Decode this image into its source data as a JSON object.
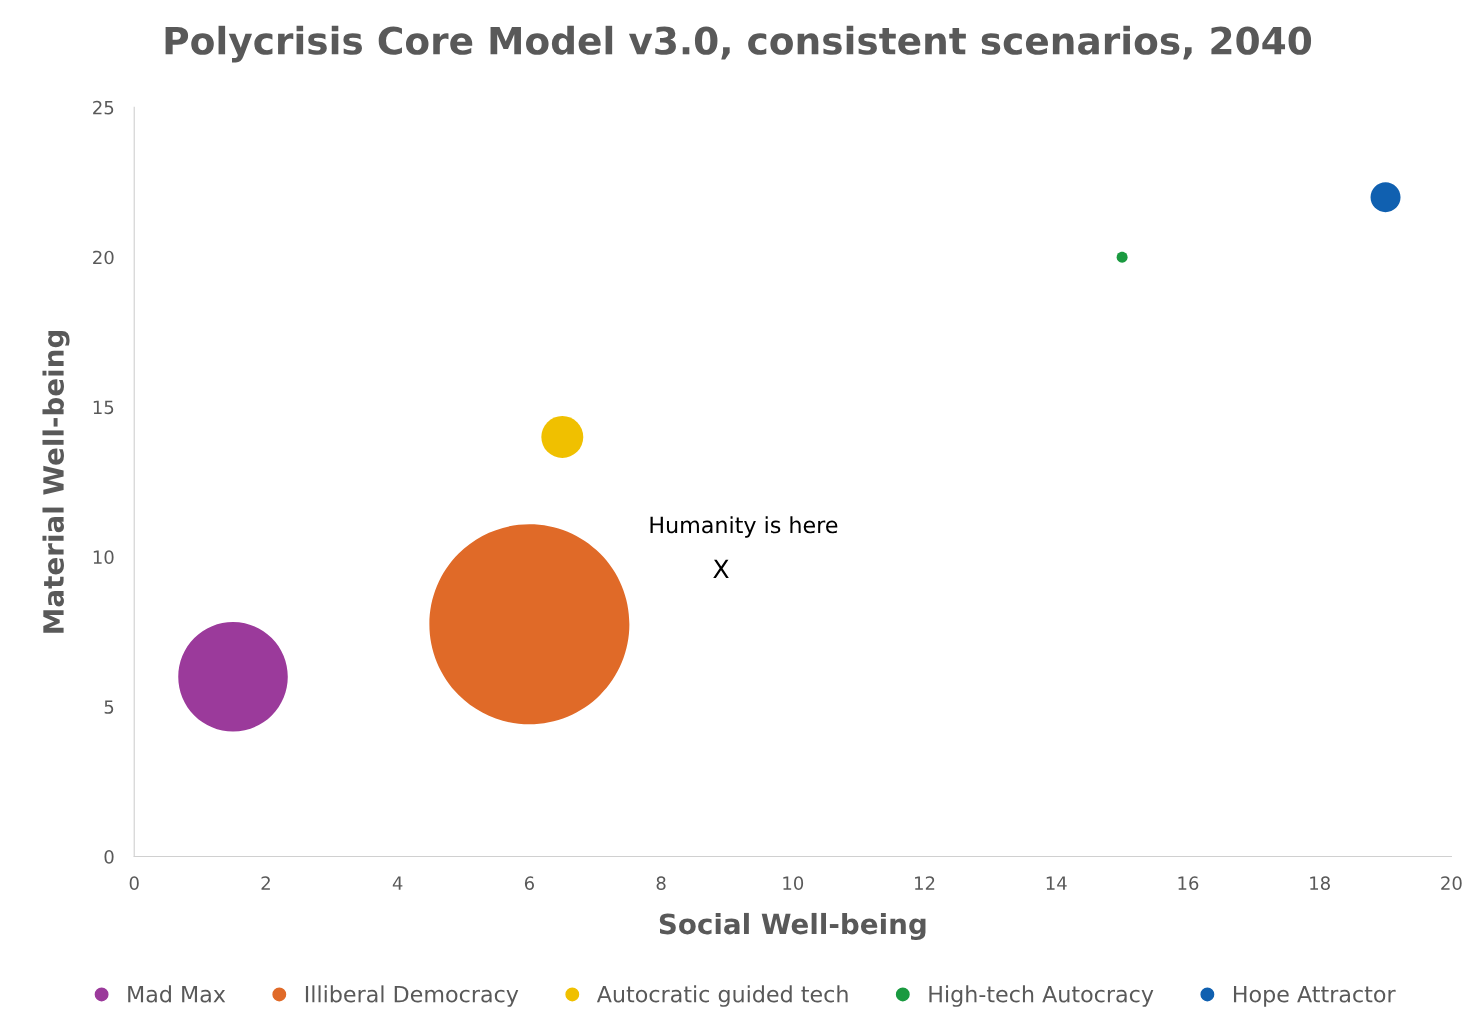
{
  "chart_data": {
    "type": "bubble",
    "title": "Polycrisis Core Model v3.0, consistent scenarios, 2040",
    "xlabel": "Social Well-being",
    "ylabel": "Material Well-being",
    "xlim": [
      0,
      20
    ],
    "xticks": [
      0,
      2,
      4,
      6,
      8,
      10,
      12,
      14,
      16,
      18,
      20
    ],
    "ylim": [
      0,
      25
    ],
    "yticks": [
      0,
      5,
      10,
      15,
      20,
      25
    ],
    "grid": false,
    "legend": "bottom",
    "series": [
      {
        "name": "Mad Max",
        "color": "#9b3a9b",
        "x": [
          1.5
        ],
        "values": [
          6
        ],
        "sizes": [
          0.3
        ]
      },
      {
        "name": "Illiberal Democracy",
        "color": "#e06a28",
        "x": [
          6
        ],
        "values": [
          7.75
        ],
        "sizes": [
          1
        ]
      },
      {
        "name": "Autocratic guided tech",
        "color": "#f0c000",
        "x": [
          6.5
        ],
        "values": [
          14
        ],
        "sizes": [
          0.044
        ]
      },
      {
        "name": "High-tech Autocracy",
        "color": "#1a9a40",
        "x": [
          15
        ],
        "values": [
          20
        ],
        "sizes": [
          0.003
        ]
      },
      {
        "name": "Hope Attractor",
        "color": "#1060b0",
        "x": [
          19
        ],
        "values": [
          22
        ],
        "sizes": [
          0.0225
        ]
      }
    ],
    "annotations": [
      "Humanity is here",
      "X"
    ]
  }
}
